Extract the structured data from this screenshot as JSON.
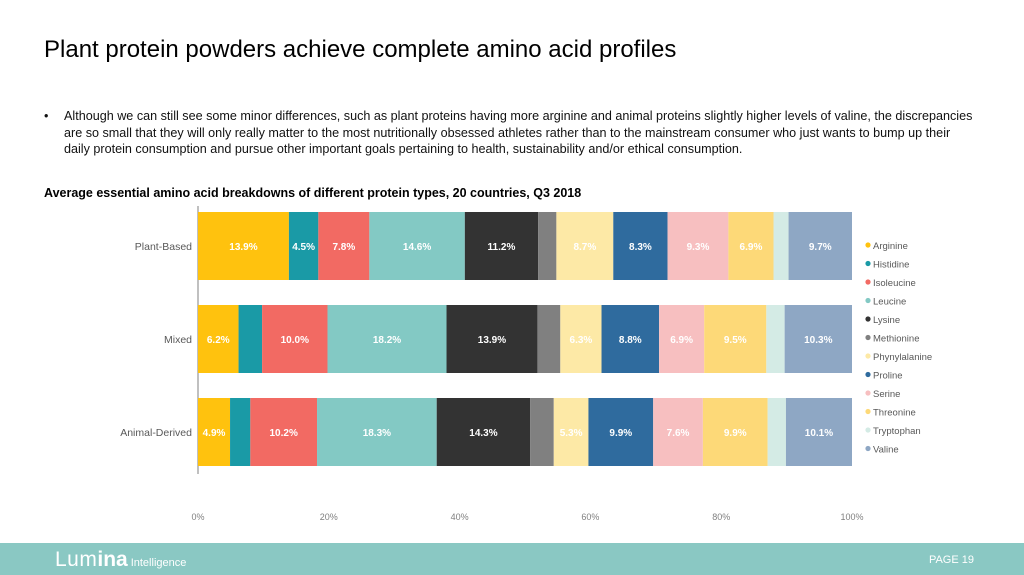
{
  "title": "Plant protein powders achieve complete amino acid profiles",
  "bullet": "Although we can still see some minor differences, such as plant proteins having more arginine and animal proteins slightly higher levels of valine, the discrepancies are so small that they will only really matter to the most nutritionally obsessed athletes rather than to the mainstream consumer who just wants to bump up their daily protein consumption and pursue other important goals pertaining to health, sustainability and/or ethical consumption.",
  "bullet_symbol": "•",
  "footer": {
    "logo_part1": "Lum",
    "logo_part2": "ina",
    "logo_part3": "Intelligence",
    "page": "PAGE 19"
  },
  "chart_data": {
    "type": "bar",
    "orientation": "horizontal",
    "stacked": true,
    "normalized": true,
    "title": "Average essential amino acid breakdowns of different protein types, 20 countries, Q3 2018",
    "categories": [
      "Plant-Based",
      "Mixed",
      "Animal-Derived"
    ],
    "x_ticks": [
      "0%",
      "20%",
      "40%",
      "60%",
      "80%",
      "100%"
    ],
    "xlim": [
      0,
      100
    ],
    "legend_position": "right",
    "series": [
      {
        "name": "Arginine",
        "color": "#ffc20e",
        "values": [
          13.9,
          6.2,
          4.9
        ],
        "labels": [
          "13.9%",
          "6.2%",
          "4.9%"
        ],
        "label_color": "#ffffff"
      },
      {
        "name": "Histidine",
        "color": "#1a9aa6",
        "values": [
          4.5,
          3.6,
          3.1
        ],
        "labels": [
          "4.5%",
          "",
          ""
        ],
        "label_color": "#ffffff"
      },
      {
        "name": "Isoleucine",
        "color": "#f26a63",
        "values": [
          7.8,
          10.0,
          10.2
        ],
        "labels": [
          "7.8%",
          "10.0%",
          "10.2%"
        ],
        "label_color": "#ffffff"
      },
      {
        "name": "Leucine",
        "color": "#83c9c4",
        "values": [
          14.6,
          18.2,
          18.3
        ],
        "labels": [
          "14.6%",
          "18.2%",
          "18.3%"
        ],
        "label_color": "#ffffff"
      },
      {
        "name": "Lysine",
        "color": "#333333",
        "values": [
          11.2,
          13.9,
          14.3
        ],
        "labels": [
          "11.2%",
          "13.9%",
          "14.3%"
        ],
        "label_color": "#ffffff"
      },
      {
        "name": "Methionine",
        "color": "#808080",
        "values": [
          2.8,
          3.5,
          3.6
        ],
        "labels": [
          "",
          "",
          ""
        ],
        "label_color": "#ffffff"
      },
      {
        "name": "Phynylalanine",
        "color": "#fde9a6",
        "values": [
          8.7,
          6.3,
          5.3
        ],
        "labels": [
          "8.7%",
          "6.3%",
          "5.3%"
        ],
        "label_color": "#ffffff"
      },
      {
        "name": "Proline",
        "color": "#2f6b9e",
        "values": [
          8.3,
          8.8,
          9.9
        ],
        "labels": [
          "8.3%",
          "8.8%",
          "9.9%"
        ],
        "label_color": "#ffffff"
      },
      {
        "name": "Serine",
        "color": "#f7bfc0",
        "values": [
          9.3,
          6.9,
          7.6
        ],
        "labels": [
          "9.3%",
          "6.9%",
          "7.6%"
        ],
        "label_color": "#ffffff"
      },
      {
        "name": "Threonine",
        "color": "#fdd978",
        "values": [
          6.9,
          9.5,
          9.9
        ],
        "labels": [
          "6.9%",
          "9.5%",
          "9.9%"
        ],
        "label_color": "#ffffff"
      },
      {
        "name": "Tryptophan",
        "color": "#d4ebe5",
        "values": [
          2.3,
          2.8,
          2.8
        ],
        "labels": [
          "",
          "",
          ""
        ],
        "label_color": "#ffffff"
      },
      {
        "name": "Valine",
        "color": "#8ea7c4",
        "values": [
          9.7,
          10.3,
          10.1
        ],
        "labels": [
          "9.7%",
          "10.3%",
          "10.1%"
        ],
        "label_color": "#ffffff"
      }
    ],
    "axis_color": "#808080",
    "grid": false
  }
}
